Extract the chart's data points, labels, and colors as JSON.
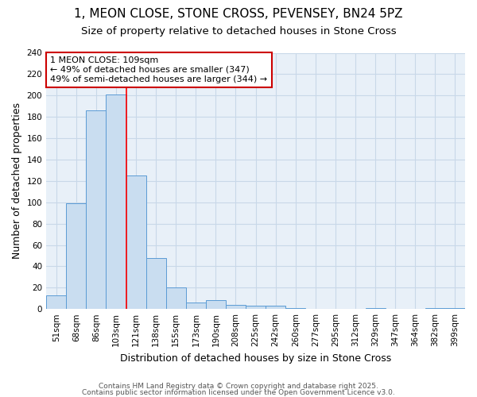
{
  "title_line1": "1, MEON CLOSE, STONE CROSS, PEVENSEY, BN24 5PZ",
  "title_line2": "Size of property relative to detached houses in Stone Cross",
  "xlabel": "Distribution of detached houses by size in Stone Cross",
  "ylabel": "Number of detached properties",
  "categories": [
    "51sqm",
    "68sqm",
    "86sqm",
    "103sqm",
    "121sqm",
    "138sqm",
    "155sqm",
    "173sqm",
    "190sqm",
    "208sqm",
    "225sqm",
    "242sqm",
    "260sqm",
    "277sqm",
    "295sqm",
    "312sqm",
    "329sqm",
    "347sqm",
    "364sqm",
    "382sqm",
    "399sqm"
  ],
  "values": [
    13,
    99,
    186,
    201,
    125,
    48,
    20,
    6,
    8,
    4,
    3,
    3,
    1,
    0,
    0,
    0,
    1,
    0,
    0,
    1,
    1
  ],
  "bar_color": "#c9ddf0",
  "bar_edge_color": "#5b9bd5",
  "bar_edge_width": 0.7,
  "red_line_x": 3.5,
  "annotation_line1": "1 MEON CLOSE: 109sqm",
  "annotation_line2": "← 49% of detached houses are smaller (347)",
  "annotation_line3": "49% of semi-detached houses are larger (344) →",
  "annotation_box_color": "#ffffff",
  "annotation_border_color": "#cc0000",
  "ylim": [
    0,
    240
  ],
  "yticks": [
    0,
    20,
    40,
    60,
    80,
    100,
    120,
    140,
    160,
    180,
    200,
    220,
    240
  ],
  "grid_color": "#c8d8e8",
  "plot_bg_color": "#e8f0f8",
  "fig_bg_color": "#ffffff",
  "footer_line1": "Contains HM Land Registry data © Crown copyright and database right 2025.",
  "footer_line2": "Contains public sector information licensed under the Open Government Licence v3.0.",
  "title1_fontsize": 11,
  "title2_fontsize": 9.5,
  "tick_fontsize": 7.5,
  "ylabel_fontsize": 9,
  "xlabel_fontsize": 9,
  "footer_fontsize": 6.5,
  "annotation_fontsize": 8
}
